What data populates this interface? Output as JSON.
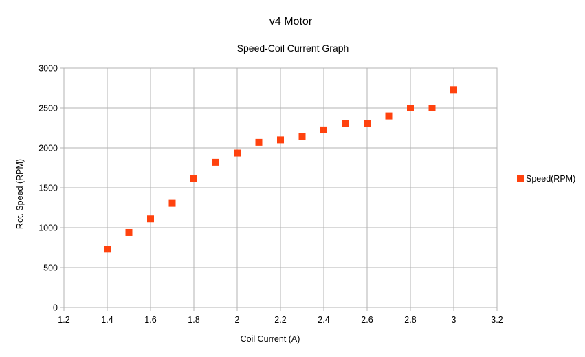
{
  "chart_data": {
    "type": "scatter",
    "title": "v4 Motor",
    "subtitle": "Speed-Coil Current Graph",
    "xlabel": "Coil Current (A)",
    "ylabel": "Rot. Speed (RPM)",
    "xlim": [
      1.2,
      3.2
    ],
    "ylim": [
      0,
      3000
    ],
    "xticks": [
      "1.2",
      "1.4",
      "1.6",
      "1.8",
      "2",
      "2.2",
      "2.4",
      "2.6",
      "2.8",
      "3",
      "3.2"
    ],
    "yticks": [
      "0",
      "500",
      "1000",
      "1500",
      "2000",
      "2500",
      "3000"
    ],
    "grid": true,
    "legend_position": "right",
    "series": [
      {
        "name": "Speed(RPM)",
        "color": "#ff420e",
        "marker": "square",
        "x": [
          1.4,
          1.5,
          1.6,
          1.7,
          1.8,
          1.9,
          2.0,
          2.1,
          2.2,
          2.3,
          2.4,
          2.5,
          2.6,
          2.7,
          2.8,
          2.9,
          3.0
        ],
        "y": [
          730,
          940,
          1110,
          1305,
          1620,
          1820,
          1935,
          2070,
          2100,
          2145,
          2225,
          2305,
          2305,
          2400,
          2500,
          2500,
          2730
        ]
      }
    ]
  }
}
